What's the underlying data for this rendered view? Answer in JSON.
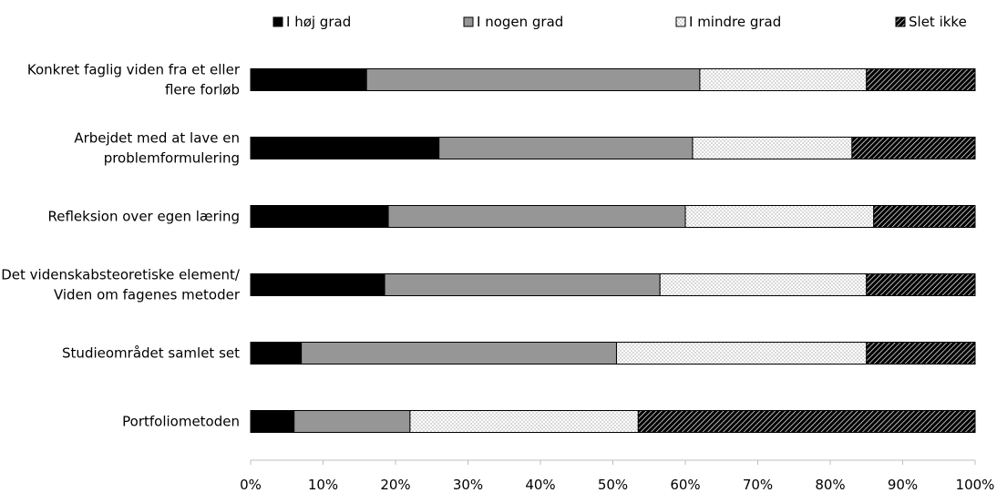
{
  "chart_data": {
    "type": "bar",
    "orientation": "horizontal",
    "stacked": true,
    "categories": [
      [
        "Konkret faglig viden fra et eller",
        "flere forløb"
      ],
      [
        "Arbejdet med at lave en",
        "problemformulering"
      ],
      [
        "Refleksion over egen læring"
      ],
      [
        "Det videnskabsteoretiske element/",
        "Viden om fagenes metoder"
      ],
      [
        "Studieområdet samlet set"
      ],
      [
        "Portfoliometoden"
      ]
    ],
    "series": [
      {
        "name": "I høj grad",
        "values": [
          16,
          26,
          19,
          18.5,
          7,
          6
        ]
      },
      {
        "name": "I nogen grad",
        "values": [
          46,
          35,
          41,
          38,
          43.5,
          16
        ]
      },
      {
        "name": "I mindre grad",
        "values": [
          23,
          22,
          26,
          28.5,
          34.5,
          31.5
        ]
      },
      {
        "name": "Slet ikke",
        "values": [
          15,
          17,
          14,
          15,
          15,
          46.5
        ]
      }
    ],
    "series_styles": [
      "solid-black",
      "solid-gray",
      "dotted-white",
      "hatched-black"
    ],
    "colors": {
      "black": "#000000",
      "gray": "#969696",
      "white": "#ffffff"
    },
    "xlim": [
      0,
      100
    ],
    "xticks": [
      "0%",
      "10%",
      "20%",
      "30%",
      "40%",
      "50%",
      "60%",
      "70%",
      "80%",
      "90%",
      "100%"
    ],
    "grid": false,
    "legend_position": "top"
  }
}
